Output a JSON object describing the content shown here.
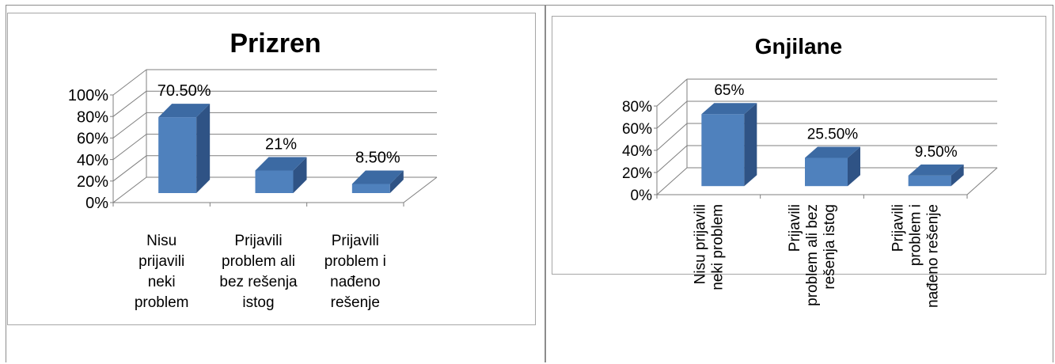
{
  "colors": {
    "bar_front": "#4f81bd",
    "bar_side": "#2f5385",
    "bar_top": "#3c6aa3",
    "gridline": "#7f7f7f"
  },
  "chart_data": [
    {
      "type": "bar",
      "title": "Prizren",
      "categories": [
        "Nisu prijavili neki problem",
        "Prijavili problem ali bez rešenja istog",
        "Prijavili problem i nađeno rešenje"
      ],
      "category_lines": [
        [
          "Nisu",
          "prijavili",
          "neki",
          "problem"
        ],
        [
          "Prijavili",
          "problem ali",
          "bez rešenja",
          "istog"
        ],
        [
          "Prijavili",
          "problem i",
          "nađeno",
          "rešenje"
        ]
      ],
      "values": [
        70.5,
        21,
        8.5
      ],
      "data_labels": [
        "70.50%",
        "21%",
        "8.50%"
      ],
      "ylim": [
        0,
        100
      ],
      "yticks": [
        "0%",
        "20%",
        "40%",
        "60%",
        "80%",
        "100%"
      ],
      "grid": true,
      "legend": "none"
    },
    {
      "type": "bar",
      "title": "Gnjilane",
      "categories": [
        "Nisu prijavili neki problem",
        "Prijavili problem ali bez rešenja istog",
        "Prijavili problem i nađeno rešenje"
      ],
      "category_lines": [
        [
          "Nisu prijavili",
          "neki problem"
        ],
        [
          "Prijavili",
          "problem ali bez",
          "rešenja istog"
        ],
        [
          "Prijavili",
          "problem i",
          "nađeno rešenje"
        ]
      ],
      "values": [
        65,
        25.5,
        9.5
      ],
      "data_labels": [
        "65%",
        "25.50%",
        "9.50%"
      ],
      "ylim": [
        0,
        80
      ],
      "yticks": [
        "0%",
        "20%",
        "40%",
        "60%",
        "80%"
      ],
      "grid": true,
      "legend": "none"
    }
  ]
}
